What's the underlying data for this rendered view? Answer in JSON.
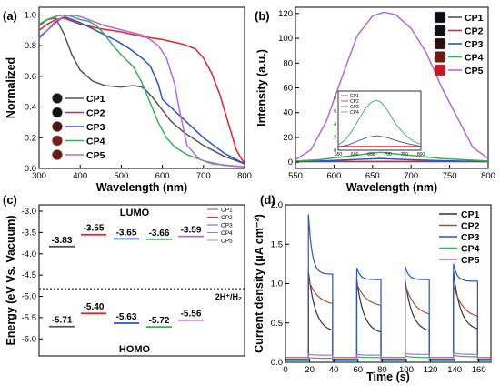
{
  "chart_data": [
    {
      "id": "a",
      "type": "line",
      "panel_label": "(a)",
      "xlabel": "Wavelength (nm)",
      "ylabel": "Normalized",
      "xlim": [
        300,
        800
      ],
      "ylim": [
        0,
        1.05
      ],
      "xticks": [
        "300",
        "400",
        "500",
        "600",
        "700",
        "800"
      ],
      "yticks": [
        "0.0",
        "0.2",
        "0.4",
        "0.6",
        "0.8",
        "1.0"
      ],
      "legend_position": "center-left",
      "series": [
        {
          "name": "CP1",
          "color": "#555555",
          "x": [
            300,
            320,
            340,
            360,
            380,
            400,
            430,
            460,
            500,
            530,
            550,
            560,
            580,
            600,
            620,
            650,
            700,
            750,
            800
          ],
          "y": [
            0.93,
            0.97,
            0.98,
            0.88,
            0.74,
            0.64,
            0.57,
            0.54,
            0.53,
            0.54,
            0.53,
            0.51,
            0.45,
            0.38,
            0.31,
            0.24,
            0.15,
            0.08,
            0.03
          ]
        },
        {
          "name": "CP2",
          "color": "#e8202a",
          "x": [
            300,
            320,
            340,
            360,
            380,
            400,
            450,
            500,
            550,
            600,
            650,
            680,
            700,
            720,
            740,
            760,
            780,
            800
          ],
          "y": [
            0.9,
            0.94,
            0.97,
            0.98,
            0.96,
            0.94,
            0.91,
            0.89,
            0.86,
            0.84,
            0.81,
            0.78,
            0.72,
            0.62,
            0.48,
            0.3,
            0.12,
            0.03
          ]
        },
        {
          "name": "CP3",
          "color": "#2a54c8",
          "x": [
            300,
            320,
            340,
            360,
            380,
            400,
            430,
            460,
            490,
            520,
            550,
            570,
            590,
            600,
            620,
            640,
            660,
            700,
            750,
            800
          ],
          "y": [
            0.85,
            0.9,
            0.95,
            0.99,
            0.97,
            0.95,
            0.91,
            0.87,
            0.83,
            0.78,
            0.72,
            0.67,
            0.55,
            0.45,
            0.4,
            0.35,
            0.3,
            0.2,
            0.1,
            0.03
          ]
        },
        {
          "name": "CP4",
          "color": "#3fad5b",
          "x": [
            300,
            320,
            340,
            360,
            380,
            400,
            420,
            440,
            460,
            480,
            500,
            530,
            550,
            570,
            590,
            610,
            630,
            660,
            700,
            750,
            800
          ],
          "y": [
            0.94,
            0.97,
            0.99,
            1.0,
            0.99,
            0.97,
            0.96,
            0.93,
            0.87,
            0.8,
            0.74,
            0.66,
            0.56,
            0.43,
            0.3,
            0.2,
            0.14,
            0.09,
            0.05,
            0.02,
            0.01
          ]
        },
        {
          "name": "CP5",
          "color": "#b36ad9",
          "x": [
            300,
            320,
            340,
            360,
            380,
            400,
            430,
            460,
            490,
            520,
            550,
            570,
            590,
            610,
            630,
            640,
            660,
            690,
            720,
            760,
            800
          ],
          "y": [
            0.86,
            0.9,
            0.96,
            0.99,
            1.0,
            0.99,
            0.96,
            0.93,
            0.91,
            0.89,
            0.87,
            0.84,
            0.8,
            0.72,
            0.55,
            0.4,
            0.15,
            0.06,
            0.03,
            0.02,
            0.01
          ]
        }
      ]
    },
    {
      "id": "b",
      "type": "line",
      "panel_label": "(b)",
      "xlabel": "Wavelength (nm)",
      "ylabel": "Intensity (a.u.)",
      "xlim": [
        550,
        800
      ],
      "ylim": [
        -5,
        125
      ],
      "xticks": [
        "550",
        "600",
        "650",
        "700",
        "750",
        "800"
      ],
      "yticks": [
        "0",
        "20",
        "40",
        "60",
        "80",
        "100",
        "120"
      ],
      "legend_position": "top-right",
      "series": [
        {
          "name": "CP1",
          "color": "#555555",
          "x": [
            550,
            800
          ],
          "y": [
            0.5,
            0.5
          ]
        },
        {
          "name": "CP2",
          "color": "#e8202a",
          "x": [
            550,
            800
          ],
          "y": [
            0.6,
            0.6
          ]
        },
        {
          "name": "CP3",
          "color": "#2a54c8",
          "x": [
            550,
            580,
            620,
            660,
            700,
            740,
            770,
            800
          ],
          "y": [
            0.5,
            1.0,
            2.0,
            3.0,
            2.0,
            1.2,
            0.8,
            0.5
          ]
        },
        {
          "name": "CP4",
          "color": "#3fad5b",
          "x": [
            550,
            580,
            620,
            660,
            700,
            740,
            770,
            800
          ],
          "y": [
            1.0,
            2.0,
            5.0,
            8.0,
            5.5,
            3.0,
            2.0,
            1.0
          ]
        },
        {
          "name": "CP5",
          "color": "#b36ad9",
          "x": [
            550,
            570,
            590,
            610,
            630,
            650,
            665,
            680,
            700,
            720,
            740,
            755,
            765,
            780,
            800
          ],
          "y": [
            2,
            10,
            33,
            68,
            102,
            118,
            121,
            119,
            108,
            88,
            60,
            42,
            30,
            12,
            3
          ]
        }
      ],
      "inset": {
        "xlim": [
          550,
          800
        ],
        "ylim": [
          0,
          9
        ],
        "xticks": [
          "550",
          "600",
          "650",
          "700",
          "750",
          "800"
        ],
        "yticks": [
          "0",
          "2",
          "4",
          "6",
          "8"
        ],
        "legend": [
          "CP1",
          "CP2",
          "CP3",
          "CP4"
        ],
        "series": [
          {
            "name": "CP1",
            "color": "#555555",
            "x": [
              550,
              800
            ],
            "y": [
              0.5,
              0.5
            ]
          },
          {
            "name": "CP2",
            "color": "#e8202a",
            "x": [
              550,
              800
            ],
            "y": [
              0.6,
              0.6
            ]
          },
          {
            "name": "CP3",
            "color": "#2a54c8",
            "x": [
              550,
              580,
              610,
              640,
              670,
              700,
              730,
              760,
              800
            ],
            "y": [
              0.5,
              0.8,
              1.4,
              2.0,
              2.2,
              1.9,
              1.4,
              1.0,
              0.6
            ]
          },
          {
            "name": "CP4",
            "color": "#3fad5b",
            "x": [
              550,
              570,
              590,
              610,
              630,
              650,
              665,
              680,
              700,
              720,
              740,
              760,
              780,
              800
            ],
            "y": [
              0.8,
              1.5,
              2.8,
              4.5,
              6.2,
              7.3,
              7.6,
              7.3,
              6.0,
              4.3,
              3.0,
              2.0,
              1.3,
              0.9
            ]
          }
        ]
      }
    },
    {
      "id": "c",
      "type": "energy-level",
      "panel_label": "(c)",
      "ylabel": "Energy (eV Vs. Vacuum)",
      "ylim": [
        -6.4,
        -2.85
      ],
      "yticks": [
        "-3.0",
        "-3.5",
        "-4.0",
        "-4.5",
        "-5.0",
        "-5.5",
        "-6.0"
      ],
      "lumo_title": "LUMO",
      "homo_title": "HOMO",
      "reference_label": "2H⁺/H₂",
      "reference_value": -4.82,
      "legend_position": "top-right",
      "series": [
        {
          "name": "CP1",
          "color": "#555555",
          "lumo": -3.83,
          "homo": -5.71,
          "lumo_label": "-3.83",
          "homo_label": "-5.71"
        },
        {
          "name": "CP2",
          "color": "#e8202a",
          "lumo": -3.55,
          "homo": -5.4,
          "lumo_label": "-3.55",
          "homo_label": "-5.40"
        },
        {
          "name": "CP3",
          "color": "#2a54c8",
          "lumo": -3.65,
          "homo": -5.63,
          "lumo_label": "-3.65",
          "homo_label": "-5.63"
        },
        {
          "name": "CP4",
          "color": "#3fad5b",
          "lumo": -3.66,
          "homo": -5.72,
          "lumo_label": "-3.66",
          "homo_label": "-5.72"
        },
        {
          "name": "CP5",
          "color": "#b36ad9",
          "lumo": -3.59,
          "homo": -5.56,
          "lumo_label": "-3.59",
          "homo_label": "-5.56"
        }
      ]
    },
    {
      "id": "d",
      "type": "line",
      "panel_label": "(d)",
      "xlabel": "Time (s)",
      "ylabel": "Current density (μA cm⁻²)",
      "xlim": [
        0,
        170
      ],
      "ylim": [
        0,
        2.0
      ],
      "xticks": [
        "0",
        "20",
        "40",
        "60",
        "80",
        "100",
        "120",
        "140",
        "160"
      ],
      "yticks": [
        "0.0",
        "0.5",
        "1.0",
        "1.5",
        "2.0"
      ],
      "legend_position": "top-right",
      "cycles": {
        "on_times": [
          19,
          59,
          99,
          139
        ],
        "off_times": [
          39,
          79,
          119,
          159
        ]
      },
      "series": [
        {
          "name": "CP1",
          "color": "#333333",
          "dark": 0.04,
          "decay": [
            [
              1.15,
              0.38
            ],
            [
              1.05,
              0.36
            ],
            [
              1.05,
              0.38
            ],
            [
              1.15,
              0.4
            ]
          ],
          "tau": 6
        },
        {
          "name": "CP2",
          "color": "#a0522d",
          "dark": 0.06,
          "decay": [
            [
              1.05,
              0.72
            ],
            [
              1.0,
              0.7
            ],
            [
              1.0,
              0.58
            ],
            [
              0.98,
              0.55
            ]
          ],
          "tau": 8
        },
        {
          "name": "CP3",
          "color": "#2a54c8",
          "dark": 0.04,
          "decay": [
            [
              1.88,
              1.12
            ],
            [
              1.2,
              1.05
            ],
            [
              1.22,
              1.05
            ],
            [
              1.25,
              1.03
            ]
          ],
          "tau": 3
        },
        {
          "name": "CP4",
          "color": "#3fad5b",
          "dark": 0.02,
          "decay": [
            [
              0.06,
              0.05
            ],
            [
              0.07,
              0.06
            ],
            [
              0.08,
              0.06
            ],
            [
              0.09,
              0.07
            ]
          ],
          "tau": 5
        },
        {
          "name": "CP5",
          "color": "#b36ad9",
          "dark": 0.03,
          "decay": [
            [
              0.1,
              0.09
            ],
            [
              0.1,
              0.09
            ],
            [
              0.11,
              0.1
            ],
            [
              0.12,
              0.1
            ]
          ],
          "tau": 5
        }
      ]
    }
  ]
}
